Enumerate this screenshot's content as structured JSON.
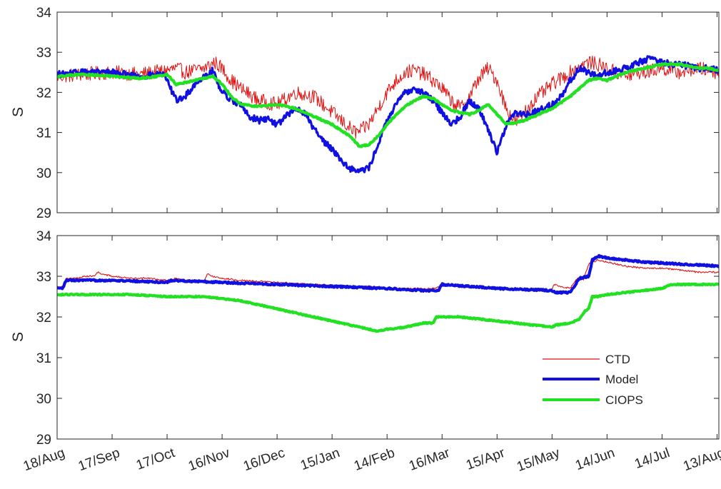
{
  "chart_data": [
    {
      "type": "line",
      "xlabel": "",
      "ylabel": "S",
      "xlim": [
        0,
        361
      ],
      "ylim": [
        29,
        34
      ],
      "yticks": [
        29,
        30,
        31,
        32,
        33,
        34
      ],
      "grid": false,
      "series": [
        {
          "color": "#e01010",
          "noise": 0.18,
          "x": [
            0,
            15,
            30,
            45,
            60,
            65,
            70,
            75,
            80,
            86,
            90,
            95,
            100,
            110,
            120,
            130,
            140,
            150,
            155,
            160,
            163,
            166,
            170,
            175,
            180,
            185,
            190,
            195,
            200,
            205,
            210,
            215,
            220,
            225,
            230,
            235,
            240,
            245,
            250,
            255,
            260,
            265,
            270,
            275,
            280,
            285,
            290,
            295,
            300,
            305,
            310,
            315,
            320,
            325,
            330,
            335,
            340,
            345,
            350,
            355,
            361
          ],
          "y": [
            32.4,
            32.45,
            32.5,
            32.45,
            32.55,
            32.6,
            32.5,
            32.55,
            32.6,
            32.75,
            32.6,
            32.3,
            32.1,
            31.8,
            31.7,
            32.0,
            31.9,
            31.5,
            31.3,
            31.1,
            31.0,
            31.05,
            31.2,
            31.6,
            32.0,
            32.3,
            32.5,
            32.55,
            32.45,
            32.3,
            32.1,
            31.8,
            31.6,
            31.9,
            32.35,
            32.6,
            32.3,
            31.6,
            31.25,
            31.5,
            31.8,
            32.0,
            32.2,
            32.35,
            32.5,
            32.65,
            32.75,
            32.7,
            32.6,
            32.5,
            32.4,
            32.45,
            32.5,
            32.55,
            32.6,
            32.55,
            32.5,
            32.55,
            32.6,
            32.55,
            32.5
          ]
        },
        {
          "color": "#1010e0",
          "noise": 0.08,
          "x": [
            0,
            15,
            30,
            45,
            58,
            62,
            65,
            70,
            75,
            80,
            85,
            88,
            92,
            100,
            105,
            110,
            115,
            120,
            125,
            130,
            135,
            140,
            145,
            150,
            155,
            160,
            165,
            170,
            175,
            180,
            185,
            190,
            195,
            200,
            205,
            210,
            215,
            220,
            225,
            230,
            235,
            240,
            245,
            250,
            255,
            260,
            265,
            270,
            275,
            280,
            285,
            290,
            295,
            300,
            305,
            310,
            315,
            320,
            325,
            330,
            335,
            340,
            345,
            350,
            355,
            361
          ],
          "y": [
            32.45,
            32.5,
            32.5,
            32.4,
            32.45,
            32.1,
            31.8,
            31.9,
            32.2,
            32.4,
            32.55,
            32.2,
            31.9,
            31.7,
            31.4,
            31.3,
            31.35,
            31.2,
            31.4,
            31.6,
            31.5,
            31.1,
            30.8,
            30.6,
            30.3,
            30.1,
            30.05,
            30.1,
            30.7,
            31.3,
            31.7,
            32.0,
            32.1,
            32.0,
            31.8,
            31.5,
            31.2,
            31.4,
            31.8,
            31.6,
            31.1,
            30.5,
            31.2,
            31.5,
            31.45,
            31.5,
            31.6,
            31.7,
            31.9,
            32.3,
            32.6,
            32.5,
            32.4,
            32.5,
            32.55,
            32.6,
            32.7,
            32.8,
            32.85,
            32.75,
            32.7,
            32.7,
            32.65,
            32.6,
            32.6,
            32.55
          ]
        },
        {
          "color": "#22e022",
          "noise": 0.02,
          "x": [
            0,
            15,
            30,
            45,
            55,
            60,
            65,
            70,
            75,
            80,
            85,
            90,
            95,
            100,
            110,
            120,
            130,
            140,
            150,
            160,
            165,
            170,
            175,
            180,
            185,
            190,
            195,
            200,
            205,
            210,
            215,
            220,
            225,
            230,
            235,
            240,
            245,
            250,
            255,
            260,
            265,
            270,
            275,
            280,
            285,
            290,
            295,
            300,
            305,
            310,
            315,
            320,
            325,
            330,
            335,
            340,
            345,
            350,
            355,
            361
          ],
          "y": [
            32.4,
            32.45,
            32.4,
            32.35,
            32.4,
            32.45,
            32.2,
            32.25,
            32.3,
            32.35,
            32.4,
            32.2,
            31.9,
            31.7,
            31.65,
            31.7,
            31.6,
            31.4,
            31.2,
            30.9,
            30.65,
            30.7,
            30.9,
            31.2,
            31.45,
            31.65,
            31.8,
            31.9,
            31.85,
            31.7,
            31.55,
            31.5,
            31.45,
            31.55,
            31.7,
            31.45,
            31.2,
            31.25,
            31.3,
            31.4,
            31.5,
            31.6,
            31.75,
            31.9,
            32.1,
            32.3,
            32.35,
            32.3,
            32.4,
            32.5,
            32.55,
            32.6,
            32.65,
            32.7,
            32.7,
            32.7,
            32.65,
            32.6,
            32.6,
            32.55
          ]
        }
      ]
    },
    {
      "type": "line",
      "xlabel": "",
      "ylabel": "S",
      "xlim": [
        0,
        361
      ],
      "ylim": [
        29,
        34
      ],
      "yticks": [
        29,
        30,
        31,
        32,
        33,
        34
      ],
      "xtick_labels": [
        "18/Aug",
        "17/Sep",
        "17/Oct",
        "16/Nov",
        "16/Dec",
        "15/Jan",
        "14/Feb",
        "16/Mar",
        "15/Apr",
        "15/May",
        "14/Jun",
        "14/Jul",
        "13/Aug"
      ],
      "xtick_days": [
        0,
        30,
        60,
        90,
        120,
        150,
        180,
        210,
        240,
        270,
        300,
        330,
        360
      ],
      "grid": false,
      "legend_placement": "lower-right",
      "series": [
        {
          "name": "CTD",
          "color": "#e01010",
          "noise": 0.02,
          "x": [
            0,
            3,
            5,
            12,
            14,
            20,
            22,
            25,
            30,
            40,
            50,
            60,
            65,
            70,
            75,
            80,
            82,
            85,
            90,
            100,
            120,
            140,
            160,
            170,
            180,
            190,
            205,
            210,
            212,
            215,
            220,
            230,
            240,
            250,
            260,
            270,
            271,
            275,
            280,
            282,
            285,
            287,
            290,
            295,
            300,
            305,
            310,
            320,
            330,
            340,
            350,
            361
          ],
          "y": [
            32.75,
            32.75,
            32.95,
            32.95,
            33.0,
            33.0,
            33.1,
            33.05,
            33.0,
            32.95,
            32.95,
            32.9,
            32.95,
            32.9,
            32.9,
            32.85,
            33.05,
            33.0,
            32.95,
            32.9,
            32.85,
            32.8,
            32.75,
            32.75,
            32.7,
            32.7,
            32.7,
            32.75,
            32.8,
            32.78,
            32.75,
            32.72,
            32.7,
            32.68,
            32.65,
            32.65,
            32.8,
            32.75,
            32.7,
            32.85,
            33.0,
            32.9,
            33.3,
            33.4,
            33.35,
            33.3,
            33.25,
            33.2,
            33.2,
            33.15,
            33.1,
            33.1
          ]
        },
        {
          "name": "Model",
          "color": "#1010e0",
          "noise": 0.02,
          "x": [
            0,
            3,
            5,
            30,
            60,
            62,
            90,
            120,
            150,
            180,
            200,
            208,
            210,
            240,
            270,
            272,
            280,
            282,
            285,
            290,
            292,
            295,
            300,
            320,
            340,
            361
          ],
          "y": [
            32.7,
            32.7,
            32.9,
            32.9,
            32.85,
            32.9,
            32.85,
            32.8,
            32.75,
            32.7,
            32.65,
            32.65,
            32.8,
            32.7,
            32.65,
            32.6,
            32.6,
            32.75,
            32.95,
            33.0,
            33.4,
            33.5,
            33.45,
            33.35,
            33.3,
            33.25
          ]
        },
        {
          "name": "CIOPS",
          "color": "#22e022",
          "noise": 0.015,
          "x": [
            0,
            20,
            40,
            60,
            80,
            90,
            100,
            110,
            120,
            130,
            140,
            150,
            160,
            170,
            175,
            180,
            190,
            195,
            200,
            205,
            207,
            210,
            220,
            230,
            240,
            250,
            260,
            270,
            272,
            280,
            285,
            288,
            290,
            292,
            295,
            300,
            310,
            320,
            330,
            335,
            340,
            350,
            361
          ],
          "y": [
            32.55,
            32.55,
            32.55,
            32.5,
            32.5,
            32.45,
            32.4,
            32.3,
            32.2,
            32.1,
            32.0,
            31.9,
            31.8,
            31.7,
            31.65,
            31.7,
            31.75,
            31.8,
            31.85,
            31.85,
            32.0,
            32.0,
            32.0,
            31.95,
            31.9,
            31.85,
            31.8,
            31.75,
            31.8,
            31.85,
            31.95,
            32.15,
            32.2,
            32.5,
            32.5,
            32.55,
            32.6,
            32.65,
            32.7,
            32.8,
            32.8,
            32.8,
            32.8
          ]
        }
      ]
    }
  ]
}
